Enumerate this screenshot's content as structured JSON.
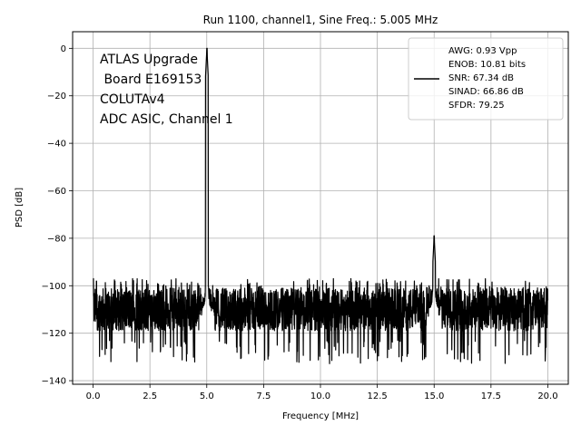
{
  "chart_data": {
    "type": "line",
    "title": "Run 1100, channel1, Sine Freq.: 5.005 MHz",
    "xlabel": "Frequency [MHz]",
    "ylabel": "PSD [dB]",
    "xlim": [
      -0.9,
      20.9
    ],
    "ylim": [
      -141.5,
      7
    ],
    "xticks": [
      0.0,
      2.5,
      5.0,
      7.5,
      10.0,
      12.5,
      15.0,
      17.5,
      20.0
    ],
    "xtick_labels": [
      "0.0",
      "2.5",
      "5.0",
      "7.5",
      "10.0",
      "12.5",
      "15.0",
      "17.5",
      "20.0"
    ],
    "yticks": [
      0,
      -20,
      -40,
      -60,
      -80,
      -100,
      -120,
      -140
    ],
    "ytick_labels": [
      "0",
      "−20",
      "−40",
      "−60",
      "−80",
      "−100",
      "−120",
      "−140"
    ],
    "grid": true,
    "line_color": "#000000",
    "annotation_lines": [
      "ATLAS Upgrade",
      " Board E169153",
      "COLUTAv4",
      "ADC ASIC, Channel 1"
    ],
    "legend": {
      "position": "top-right",
      "lines": [
        "AWG: 0.93 Vpp",
        "ENOB: 10.81 bits",
        "SNR: 67.34 dB",
        "SINAD: 66.86 dB",
        "SFDR: 79.25"
      ]
    },
    "series": [
      {
        "noise_floor_db": -110,
        "noise_floor_range_db": [
          -133,
          -97
        ],
        "start_db": -93,
        "fundamental": {
          "freq_mhz": 5.005,
          "peak_db": 0
        },
        "spurs": [
          {
            "freq_mhz": 15.0,
            "peak_db": -79
          }
        ],
        "x_range_mhz": [
          0.0,
          20.0
        ]
      }
    ]
  }
}
